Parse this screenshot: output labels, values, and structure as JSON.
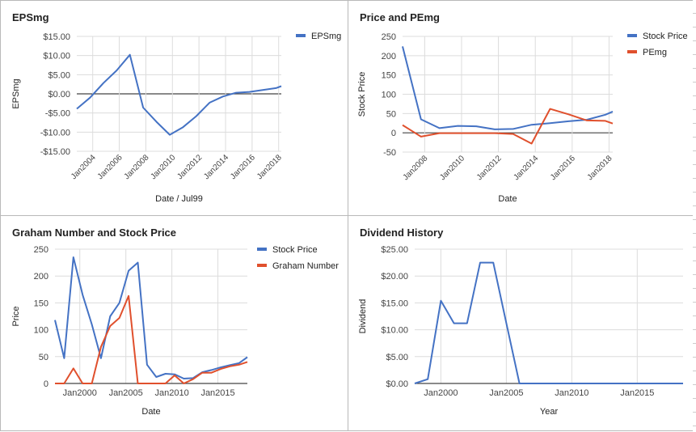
{
  "panels": [
    {
      "title": "EPSmg"
    },
    {
      "title": "Price and PEmg"
    },
    {
      "title": "Graham Number and Stock Price"
    },
    {
      "title": "Dividend History"
    }
  ],
  "chart_data": [
    {
      "type": "line",
      "title": "EPSmg",
      "xlabel": "Date / Jul99",
      "ylabel": "EPSmg",
      "ylim": [
        -15,
        15
      ],
      "yticks": [
        -15,
        -10,
        -5,
        0,
        5,
        10,
        15
      ],
      "ytick_labels": [
        "-$15.00",
        "-$10.00",
        "-$5.00",
        "$0.00",
        "$5.00",
        "$10.00",
        "$15.00"
      ],
      "xlim": [
        2002.8,
        2018.2
      ],
      "xticks": [
        2004,
        2006,
        2008,
        2010,
        2012,
        2014,
        2016,
        2018
      ],
      "xtick_labels": [
        "Jan2004",
        "Jan2006",
        "Jan2008",
        "Jan2010",
        "Jan2012",
        "Jan2014",
        "Jan2016",
        "Jan2018"
      ],
      "legend": "right",
      "series": [
        {
          "name": "EPSmg",
          "color": "#4472c4",
          "x": [
            2002.8,
            2003.8,
            2004.8,
            2005.8,
            2006.8,
            2007.8,
            2008.8,
            2009.8,
            2010.8,
            2011.8,
            2012.8,
            2013.8,
            2014.8,
            2015.8,
            2016.8,
            2017.8,
            2018.2
          ],
          "y": [
            -3.9,
            -1.0,
            2.8,
            6.1,
            10.2,
            -3.6,
            -7.3,
            -10.7,
            -8.7,
            -5.8,
            -2.3,
            -0.7,
            0.3,
            0.5,
            1.0,
            1.5,
            2.0
          ]
        }
      ]
    },
    {
      "type": "line",
      "title": "Price and PEmg",
      "xlabel": "Date",
      "ylabel": "Stock Price",
      "ylim": [
        -50,
        250
      ],
      "yticks": [
        -50,
        0,
        50,
        100,
        150,
        200,
        250
      ],
      "ytick_labels": [
        "-50",
        "0",
        "50",
        "100",
        "150",
        "200",
        "250"
      ],
      "xlim": [
        2006.8,
        2018.2
      ],
      "xticks": [
        2008,
        2010,
        2012,
        2014,
        2016,
        2018
      ],
      "xtick_labels": [
        "Jan2008",
        "Jan2010",
        "Jan2012",
        "Jan2014",
        "Jan2016",
        "Jan2018"
      ],
      "legend": "right",
      "series": [
        {
          "name": "Stock Price",
          "color": "#4472c4",
          "x": [
            2006.8,
            2007.8,
            2008.8,
            2009.8,
            2010.8,
            2011.8,
            2012.8,
            2013.8,
            2014.8,
            2015.8,
            2016.8,
            2017.8,
            2018.2
          ],
          "y": [
            224,
            35,
            12,
            18,
            17,
            9,
            10,
            21,
            25,
            30,
            34,
            47,
            55
          ]
        },
        {
          "name": "PEmg",
          "color": "#e0502d",
          "x": [
            2006.8,
            2007.8,
            2008.8,
            2009.8,
            2010.8,
            2011.8,
            2012.8,
            2013.8,
            2014.8,
            2015.8,
            2016.8,
            2017.8,
            2018.2
          ],
          "y": [
            20,
            -10,
            -1,
            -1,
            -1,
            -1,
            -3,
            -28,
            62,
            48,
            32,
            31,
            24
          ]
        }
      ]
    },
    {
      "type": "line",
      "title": "Graham Number and Stock Price",
      "xlabel": "Date",
      "ylabel": "Price",
      "ylim": [
        0,
        250
      ],
      "yticks": [
        0,
        50,
        100,
        150,
        200,
        250
      ],
      "ytick_labels": [
        "0",
        "50",
        "100",
        "150",
        "200",
        "250"
      ],
      "xlim": [
        1997.3,
        2018.2
      ],
      "xticks": [
        2000,
        2005,
        2010,
        2015
      ],
      "xtick_labels": [
        "Jan2000",
        "Jan2005",
        "Jan2010",
        "Jan2015"
      ],
      "legend": "right",
      "series": [
        {
          "name": "Stock Price",
          "color": "#4472c4",
          "x": [
            1997.3,
            1998.3,
            1999.3,
            2000.3,
            2001.3,
            2002.3,
            2003.3,
            2004.3,
            2005.3,
            2006.3,
            2007.3,
            2008.3,
            2009.3,
            2010.3,
            2011.3,
            2012.3,
            2013.3,
            2014.3,
            2015.3,
            2016.3,
            2017.3,
            2018.2
          ],
          "y": [
            118,
            47,
            235,
            165,
            110,
            47,
            125,
            150,
            210,
            225,
            35,
            12,
            18,
            17,
            9,
            10,
            21,
            25,
            30,
            34,
            38,
            49
          ]
        },
        {
          "name": "Graham Number",
          "color": "#e0502d",
          "x": [
            1997.3,
            1998.3,
            1999.3,
            2000.3,
            2001.3,
            2002.3,
            2003.3,
            2004.3,
            2005.3,
            2006.3,
            2007.3,
            2008.3,
            2009.3,
            2010.3,
            2011.3,
            2012.3,
            2013.3,
            2014.3,
            2015.3,
            2016.3,
            2017.3,
            2018.2
          ],
          "y": [
            0,
            0,
            28,
            0,
            0,
            68,
            107,
            122,
            163,
            0,
            0,
            0,
            0,
            15,
            0,
            8,
            20,
            20,
            27,
            32,
            35,
            40
          ]
        }
      ]
    },
    {
      "type": "line",
      "title": "Dividend History",
      "xlabel": "Year",
      "ylabel": "Dividend",
      "ylim": [
        0,
        25
      ],
      "yticks": [
        0,
        5,
        10,
        15,
        20,
        25
      ],
      "ytick_labels": [
        "$0.00",
        "$5.00",
        "$10.00",
        "$15.00",
        "$20.00",
        "$25.00"
      ],
      "xlim": [
        1998,
        2018.5
      ],
      "xticks": [
        2000,
        2005,
        2010,
        2015
      ],
      "xtick_labels": [
        "Jan2000",
        "Jan2005",
        "Jan2010",
        "Jan2015"
      ],
      "legend": "none",
      "series": [
        {
          "name": "",
          "color": "#4472c4",
          "x": [
            1998,
            1999,
            2000,
            2001,
            2002,
            2003,
            2004,
            2005,
            2006,
            2007,
            2008,
            2009,
            2010,
            2011,
            2012,
            2013,
            2014,
            2015,
            2016,
            2017,
            2018.5
          ],
          "y": [
            0,
            0.8,
            15.4,
            11.2,
            11.2,
            22.5,
            22.5,
            11.2,
            0,
            0,
            0,
            0,
            0,
            0,
            0,
            0,
            0,
            0,
            0,
            0,
            0
          ]
        }
      ]
    }
  ]
}
